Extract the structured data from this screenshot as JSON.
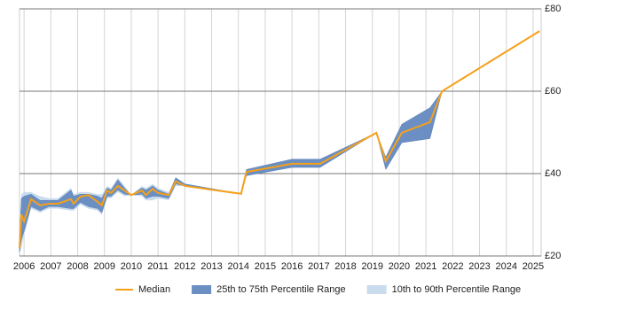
{
  "chart_data": {
    "type": "line",
    "x": [
      2005.83,
      2005.9,
      2006.0,
      2006.26,
      2006.6,
      2006.93,
      2007.26,
      2007.75,
      2007.85,
      2008.1,
      2008.4,
      2008.75,
      2008.9,
      2009.1,
      2009.25,
      2009.5,
      2009.75,
      2010.0,
      2010.4,
      2010.55,
      2010.8,
      2011.0,
      2011.4,
      2011.66,
      2012.0,
      2014.1,
      2014.3,
      2016.0,
      2017.05,
      2019.15,
      2019.5,
      2020.1,
      2021.15,
      2021.6,
      2025.24
    ],
    "series": [
      {
        "name": "Median",
        "color": "#f5a01a",
        "values": [
          21.9,
          30.1,
          28.4,
          33.8,
          32.3,
          32.7,
          32.7,
          33.8,
          32.7,
          34.4,
          34.8,
          33.1,
          32.3,
          35.9,
          35.3,
          37.0,
          35.9,
          34.8,
          35.9,
          34.8,
          36.3,
          35.3,
          34.8,
          38.1,
          37.0,
          35.1,
          40.4,
          42.4,
          42.4,
          49.9,
          43.0,
          49.9,
          52.5,
          60.0,
          74.6
        ]
      }
    ],
    "bands": [
      {
        "name": "25th to 75th Percentile Range",
        "color": "#6b8fc3",
        "low": [
          21,
          24,
          26,
          32,
          31,
          32,
          32,
          31.5,
          31.5,
          33,
          32,
          31.5,
          30.5,
          34.5,
          34.5,
          36,
          35,
          34.8,
          35,
          34,
          34.5,
          34.5,
          34,
          37.5,
          37,
          35.1,
          39.5,
          41.5,
          41.5,
          49.9,
          41,
          47.5,
          48.5,
          60,
          null
        ],
        "high": [
          24,
          34,
          34.5,
          35,
          33.5,
          33.5,
          33.5,
          36,
          34.5,
          35,
          35,
          34.5,
          34,
          36.5,
          36,
          38.5,
          36.5,
          34.8,
          36.5,
          36,
          37,
          36,
          35,
          39,
          37.5,
          35.1,
          41,
          43.5,
          43.5,
          49.9,
          44,
          52,
          56,
          60,
          null
        ]
      },
      {
        "name": "10th to 90th Percentile Range",
        "color": "#c9dcee",
        "low": [
          20.5,
          22,
          25,
          31.5,
          30.5,
          31.5,
          31.5,
          31,
          31,
          32.5,
          31.5,
          31,
          30,
          34,
          34,
          35.5,
          34.5,
          34.8,
          34.5,
          33.5,
          33.5,
          34,
          33.5,
          37,
          37,
          35.1,
          39.5,
          41.5,
          41.5,
          49.9,
          41,
          47.5,
          48.5,
          60,
          null
        ],
        "high": [
          25,
          35,
          35.5,
          35.5,
          34.5,
          34,
          34,
          36.5,
          35,
          35.5,
          35.5,
          35,
          35,
          37,
          36.5,
          39,
          37,
          34.8,
          37,
          36.5,
          37.5,
          36.5,
          35.5,
          39,
          37.5,
          35.1,
          41,
          43.5,
          43.5,
          49.9,
          44,
          52,
          56,
          60,
          null
        ]
      }
    ],
    "xlim": [
      2005.83,
      2025.3
    ],
    "xticks": [
      2006,
      2007,
      2008,
      2009,
      2010,
      2011,
      2012,
      2013,
      2014,
      2015,
      2016,
      2017,
      2018,
      2019,
      2020,
      2021,
      2022,
      2023,
      2024,
      2025
    ],
    "ylim": [
      20,
      80
    ],
    "yticks": [
      {
        "value": 20,
        "label": "£20"
      },
      {
        "value": 40,
        "label": "£40"
      },
      {
        "value": 60,
        "label": "£60"
      },
      {
        "value": 80,
        "label": "£80"
      }
    ],
    "grid": true,
    "legend": "bottom"
  }
}
